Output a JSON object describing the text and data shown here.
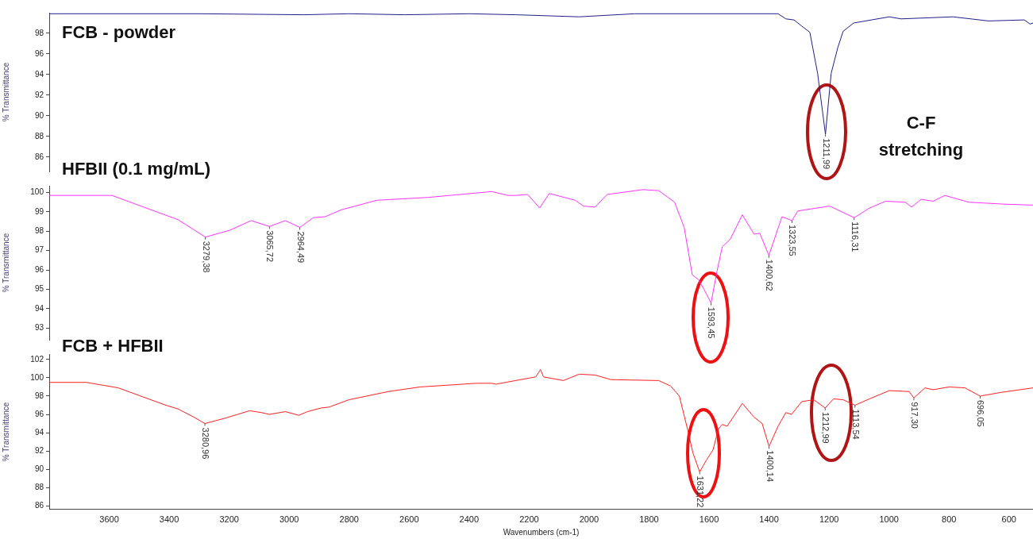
{
  "chart_data": [
    {
      "type": "line",
      "title": "FCB - powder",
      "ylabel": "% Transmittance",
      "tick_labels": "y",
      "marker": "none",
      "x": [
        3800,
        3300,
        2952,
        2800,
        2615,
        2400,
        2245,
        2033,
        1847,
        1370,
        1344,
        1317,
        1291,
        1264,
        1238,
        1211.99,
        1193,
        1171,
        1153,
        1118,
        999,
        960,
        787,
        668,
        549,
        530,
        520
      ],
      "series": [
        {
          "color": "#1f1f8a",
          "values": [
            99.9,
            99.9,
            99.8,
            99.9,
            99.8,
            99.9,
            99.8,
            99.6,
            99.9,
            99.9,
            99.4,
            99.3,
            98.7,
            98.1,
            94.1,
            88.2,
            94.1,
            96.6,
            98.2,
            99.0,
            99.6,
            99.4,
            99.6,
            99.2,
            99.3,
            98.9,
            99.0
          ]
        }
      ],
      "xlim": [
        3800,
        520
      ],
      "ylim": [
        84.6,
        100
      ],
      "yticks": [
        86,
        88,
        90,
        92,
        94,
        96,
        98
      ],
      "annotations": [
        {
          "text": "1211,99",
          "x": 1211.99,
          "y": 88.2
        },
        "C-F stretching"
      ]
    },
    {
      "type": "line",
      "title": "HFBII (0.1 mg/mL)",
      "ylabel": "% Transmittance",
      "tick_labels": "y",
      "marker": "none",
      "x": [
        3800,
        3591,
        3371,
        3279.38,
        3199,
        3127,
        3065.72,
        3013,
        2964.49,
        2920,
        2880,
        2828,
        2708,
        2536,
        2324,
        2271,
        2245,
        2205,
        2165,
        2133,
        2046,
        2019,
        1980,
        1940,
        1821,
        1768,
        1715,
        1683,
        1656,
        1635,
        1617,
        1593.45,
        1574,
        1556,
        1529,
        1489,
        1450,
        1431,
        1400.62,
        1357,
        1323.55,
        1304,
        1198,
        1116.31,
        1065,
        1012,
        946,
        925,
        893,
        853,
        814,
        734,
        615,
        520
      ],
      "series": [
        {
          "color": "#ff33ff",
          "values": [
            99.85,
            99.85,
            98.6,
            97.7,
            98.05,
            98.55,
            98.25,
            98.55,
            98.2,
            98.7,
            98.75,
            99.1,
            99.6,
            99.75,
            100.05,
            99.85,
            99.85,
            99.9,
            99.2,
            99.95,
            99.6,
            99.3,
            99.25,
            99.9,
            100.15,
            100.1,
            99.5,
            98.2,
            95.75,
            95.5,
            95.0,
            94.3,
            95.9,
            97.2,
            97.6,
            98.85,
            97.85,
            97.9,
            96.75,
            98.75,
            98.55,
            99.05,
            99.3,
            98.7,
            99.2,
            99.55,
            99.5,
            99.25,
            99.65,
            99.55,
            99.85,
            99.5,
            99.4,
            99.35
          ]
        }
      ],
      "xlim": [
        3800,
        520
      ],
      "ylim": [
        92.4,
        100.35
      ],
      "yticks": [
        93,
        94,
        95,
        96,
        97,
        98,
        99,
        100
      ],
      "annotations": [
        {
          "text": "3279,38",
          "x": 3279.38,
          "y": 97.7
        },
        {
          "text": "3065,72",
          "x": 3065.72,
          "y": 98.25
        },
        {
          "text": "2964,49",
          "x": 2964.49,
          "y": 98.2
        },
        {
          "text": "1593,45",
          "x": 1593.45,
          "y": 94.3
        },
        {
          "text": "1400,62",
          "x": 1400.62,
          "y": 96.75
        },
        {
          "text": "1323,55",
          "x": 1323.55,
          "y": 98.55
        },
        {
          "text": "1116,31",
          "x": 1116.31,
          "y": 98.7
        }
      ]
    },
    {
      "type": "line",
      "title": "FCB + HFBII",
      "ylabel": "% Transmittance",
      "xlabel": "Wavenumbers (cm-1)",
      "marker": "none",
      "x": [
        3800,
        3676,
        3570,
        3411,
        3371,
        3318,
        3280.96,
        3212,
        3172,
        3132,
        3093,
        3066,
        3013,
        2968,
        2939,
        2894,
        2867,
        2801,
        2669,
        2563,
        2377,
        2324,
        2311,
        2245,
        2178,
        2162,
        2152,
        2086,
        2033,
        1980,
        1927,
        1768,
        1728,
        1699,
        1672,
        1654,
        1631.22,
        1609,
        1587,
        1569,
        1556,
        1540,
        1489,
        1450,
        1423,
        1400.14,
        1370,
        1344,
        1325,
        1291,
        1251,
        1212.99,
        1185,
        1153,
        1113.54,
        1065,
        999,
        933,
        917.3,
        880,
        853,
        800,
        747,
        696.05,
        628,
        520
      ],
      "series": [
        {
          "color": "#ff2020",
          "values": [
            99.5,
            99.5,
            98.9,
            97.0,
            96.6,
            95.7,
            95.0,
            95.6,
            96.0,
            96.4,
            96.2,
            96.0,
            96.3,
            95.9,
            96.3,
            96.7,
            96.8,
            97.6,
            98.5,
            99.0,
            99.4,
            99.4,
            99.3,
            99.7,
            100.1,
            100.9,
            100.1,
            99.7,
            100.4,
            100.3,
            99.8,
            99.7,
            99.1,
            98.0,
            94.4,
            91.8,
            89.7,
            91.0,
            92.1,
            94.4,
            94.9,
            94.7,
            97.2,
            95.7,
            95.0,
            92.5,
            94.7,
            96.2,
            96.0,
            97.4,
            97.6,
            96.7,
            97.7,
            97.6,
            97.0,
            97.7,
            98.6,
            98.5,
            97.8,
            98.9,
            98.7,
            99.0,
            98.9,
            98.0,
            98.4,
            98.9
          ]
        }
      ],
      "xlim": [
        3800,
        520
      ],
      "ylim": [
        85.6,
        102.6
      ],
      "yticks": [
        86,
        88,
        90,
        92,
        94,
        96,
        98,
        100,
        102
      ],
      "xticks": [
        3600,
        3400,
        3200,
        3000,
        2800,
        2600,
        2400,
        2200,
        2000,
        1800,
        1600,
        1400,
        1200,
        1000,
        800,
        600
      ],
      "annotations": [
        {
          "text": "3280,96",
          "x": 3280.96,
          "y": 95.0
        },
        {
          "text": "1631,22",
          "x": 1631.22,
          "y": 89.7
        },
        {
          "text": "1400,14",
          "x": 1400.14,
          "y": 92.5
        },
        {
          "text": "1212,99",
          "x": 1212.99,
          "y": 96.7
        },
        {
          "text": "1113,54",
          "x": 1113.54,
          "y": 97.0
        },
        {
          "text": "917,30",
          "x": 917.3,
          "y": 97.8
        },
        {
          "text": "696,05",
          "x": 696.05,
          "y": 98.0
        }
      ]
    }
  ]
}
